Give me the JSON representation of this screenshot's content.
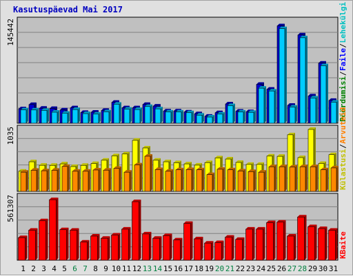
{
  "title": "Kasutuspäevad Mai 2017",
  "colors": {
    "background": "#e0e0e0",
    "panel": "#c0c0c0",
    "pageviews": "#00ccff",
    "files": "#0000cc",
    "visits": "#ffff00",
    "sites": "#ff8800",
    "kbytes": "#ff0000",
    "weekend_label": "#007f3f"
  },
  "chart_data": [
    {
      "type": "bar",
      "title": "",
      "ylabel_max": "145442",
      "categories": [
        "1",
        "2",
        "3",
        "4",
        "5",
        "6",
        "7",
        "8",
        "9",
        "10",
        "11",
        "12",
        "13",
        "14",
        "15",
        "16",
        "17",
        "18",
        "19",
        "20",
        "21",
        "22",
        "23",
        "24",
        "25",
        "26",
        "27",
        "28",
        "29",
        "30",
        "31"
      ],
      "weekend_categories": [
        "6",
        "7",
        "13",
        "14",
        "20",
        "21",
        "27",
        "28"
      ],
      "ylim": [
        0,
        145442
      ],
      "legend": [
        {
          "text": "Pöördumisi",
          "color": "#008000"
        },
        {
          "text": "Faile",
          "color": "#0000ff"
        },
        {
          "text": "Lehekülgi",
          "color": "#00c0c0"
        }
      ],
      "series": [
        {
          "name": "Faile",
          "values": [
            20500,
            26700,
            21400,
            21000,
            18900,
            22000,
            15300,
            15700,
            18300,
            29800,
            22000,
            22000,
            26800,
            24500,
            17500,
            17500,
            16000,
            13500,
            9900,
            15000,
            27500,
            17200,
            16500,
            55500,
            48500,
            139000,
            25500,
            126000,
            38900,
            85800,
            32600
          ]
        },
        {
          "name": "Lehekülgi",
          "values": [
            19000,
            18900,
            18300,
            15700,
            14300,
            19500,
            13700,
            13000,
            16300,
            27200,
            20000,
            19500,
            23800,
            20500,
            16000,
            16000,
            15000,
            11500,
            8800,
            13000,
            25000,
            16000,
            15500,
            50000,
            46000,
            135000,
            23000,
            122000,
            36000,
            82000,
            30000
          ]
        }
      ]
    },
    {
      "type": "bar",
      "title": "",
      "ylabel_max": "1035",
      "categories": [
        "1",
        "2",
        "3",
        "4",
        "5",
        "6",
        "7",
        "8",
        "9",
        "10",
        "11",
        "12",
        "13",
        "14",
        "15",
        "16",
        "17",
        "18",
        "19",
        "20",
        "21",
        "22",
        "23",
        "24",
        "25",
        "26",
        "27",
        "28",
        "29",
        "30",
        "31"
      ],
      "ylim": [
        0,
        1035
      ],
      "legend": [
        {
          "text": "Külastusi",
          "color": "#c0c000"
        },
        {
          "text": "Arvuteid",
          "color": "#ff8000"
        }
      ],
      "series": [
        {
          "name": "Külastusi",
          "values": [
            336,
            494,
            435,
            434,
            459,
            414,
            434,
            465,
            520,
            593,
            624,
            852,
            725,
            520,
            494,
            478,
            459,
            438,
            480,
            559,
            540,
            483,
            450,
            450,
            589,
            585,
            945,
            564,
            1035,
            466,
            613
          ]
        },
        {
          "name": "Arvuteid",
          "values": [
            320,
            352,
            344,
            352,
            416,
            336,
            336,
            357,
            354,
            384,
            320,
            441,
            587,
            364,
            336,
            360,
            364,
            360,
            280,
            370,
            360,
            340,
            330,
            320,
            411,
            411,
            405,
            411,
            411,
            360,
            392
          ]
        }
      ]
    },
    {
      "type": "bar",
      "title": "",
      "ylabel_max": "561307",
      "categories": [
        "1",
        "2",
        "3",
        "4",
        "5",
        "6",
        "7",
        "8",
        "9",
        "10",
        "11",
        "12",
        "13",
        "14",
        "15",
        "16",
        "17",
        "18",
        "19",
        "20",
        "21",
        "22",
        "23",
        "24",
        "25",
        "26",
        "27",
        "28",
        "29",
        "30",
        "31"
      ],
      "ylim": [
        0,
        561307
      ],
      "legend": [
        {
          "text": "KBaite",
          "color": "#ff0000"
        }
      ],
      "series": [
        {
          "name": "KBaite",
          "values": [
            202000,
            268000,
            353000,
            542000,
            273000,
            268000,
            162000,
            216000,
            196000,
            225000,
            278000,
            524000,
            235000,
            196000,
            220000,
            181000,
            329000,
            191000,
            153000,
            157000,
            206000,
            186000,
            278000,
            278000,
            336000,
            341000,
            216000,
            387000,
            300000,
            283000,
            268000
          ]
        }
      ]
    }
  ]
}
